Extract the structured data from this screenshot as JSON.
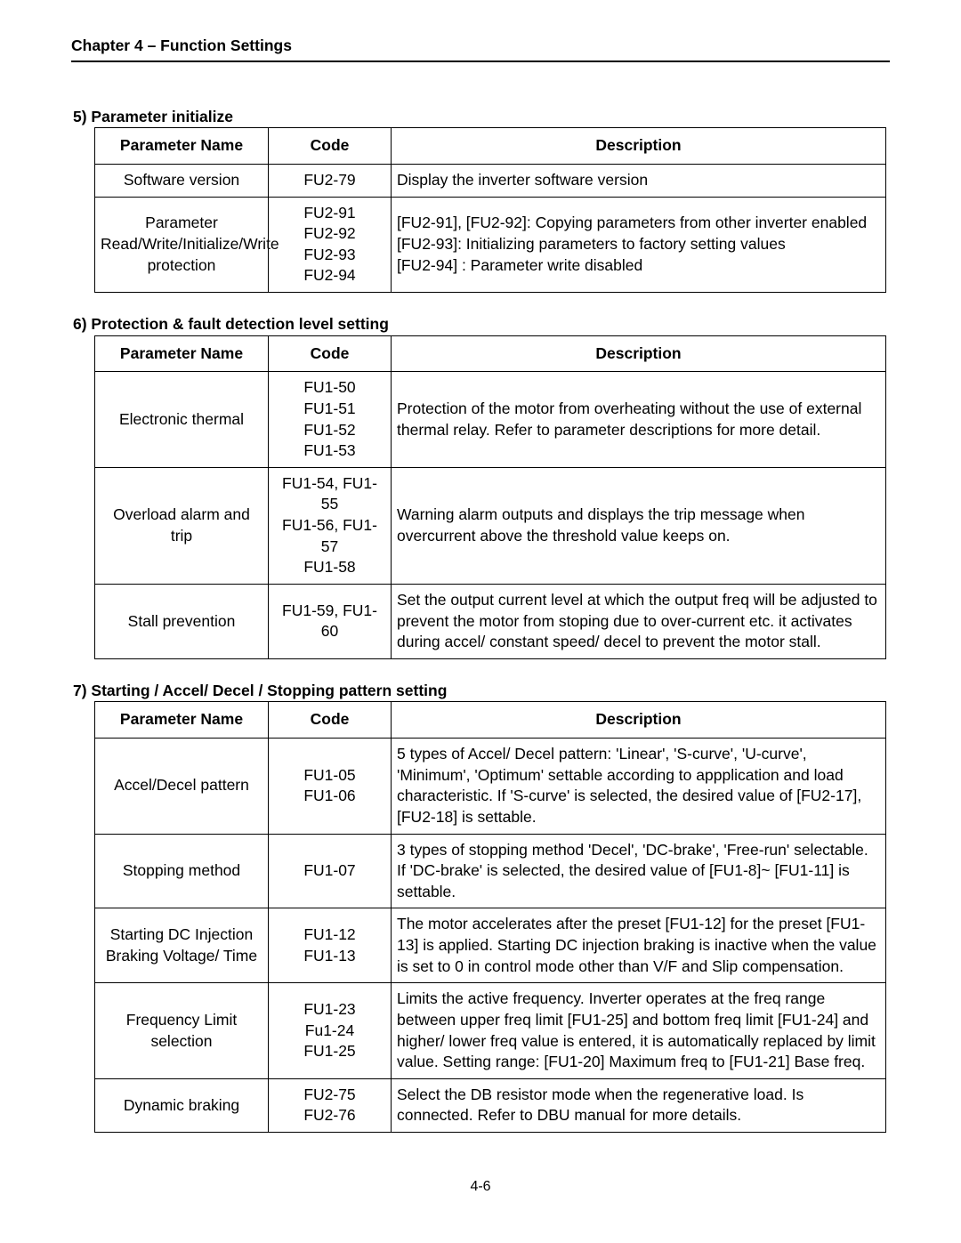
{
  "chapter_header": "Chapter 4 – Function Settings",
  "page_num": "4-6",
  "headers": {
    "name": "Parameter Name",
    "code": "Code",
    "desc": "Description"
  },
  "sections": [
    {
      "title": "5) Parameter initialize",
      "rows": [
        {
          "name": "Software version",
          "code": "FU2-79",
          "desc": "Display the inverter software version"
        },
        {
          "name": "Parameter Read/Write/Initialize/Write protection",
          "code": "FU2-91\nFU2-92\nFU2-93\nFU2-94",
          "desc": "[FU2-91], [FU2-92]: Copying parameters from other inverter enabled\n[FU2-93]: Initializing parameters to factory setting values\n[FU2-94] : Parameter write disabled"
        }
      ]
    },
    {
      "title": "6) Protection & fault detection level setting",
      "rows": [
        {
          "name": "Electronic thermal",
          "code": "FU1-50\nFU1-51\nFU1-52\nFU1-53",
          "desc": "Protection of the motor from overheating without the use of external thermal relay. Refer to parameter descriptions for more detail."
        },
        {
          "name": "Overload alarm and trip",
          "code": "FU1-54, FU1-55\nFU1-56, FU1-57\nFU1-58",
          "desc": "Warning alarm outputs and displays the trip message when overcurrent above the threshold value keeps on."
        },
        {
          "name": "Stall prevention",
          "code": "FU1-59, FU1-60",
          "desc": "Set the output current level at which the output freq will be adjusted to prevent the motor from stoping due to over-current etc. it activates during accel/ constant speed/ decel to prevent the motor stall."
        }
      ]
    },
    {
      "title": "7) Starting / Accel/ Decel / Stopping pattern setting",
      "rows": [
        {
          "name": "Accel/Decel pattern",
          "code": "FU1-05\nFU1-06",
          "desc": "5 types of Accel/ Decel pattern: 'Linear',  'S-curve', 'U-curve', 'Minimum', 'Optimum' settable according to appplication and load characteristic. If 'S-curve' is selected, the desired value of [FU2-17], [FU2-18] is settable."
        },
        {
          "name": "Stopping method",
          "code": "FU1-07",
          "desc": "3 types of stopping method 'Decel', 'DC-brake',  'Free-run' selectable. If 'DC-brake' is selected, the desired value of [FU1-8]~ [FU1-11] is settable."
        },
        {
          "name": "Starting DC Injection Braking Voltage/ Time",
          "code": "FU1-12\nFU1-13",
          "desc": "The motor accelerates after the preset [FU1-12] for the preset [FU1-13] is applied. Starting DC injection braking is inactive when the value is set to 0 in control mode other than V/F and Slip compensation."
        },
        {
          "name": "Frequency Limit selection",
          "code": "FU1-23\nFu1-24\nFU1-25",
          "desc": "Limits the active frequency. Inverter operates at the freq range between upper freq limit [FU1-25] and bottom freq limit [FU1-24] and higher/ lower freq value is entered, it is automatically replaced by limit value. Setting range: [FU1-20] Maximum freq to [FU1-21] Base freq."
        },
        {
          "name": "Dynamic braking",
          "code": "FU2-75\nFU2-76",
          "desc": "Select the DB resistor mode when the regenerative load. Is connected. Refer to DBU manual for more details."
        }
      ]
    }
  ]
}
